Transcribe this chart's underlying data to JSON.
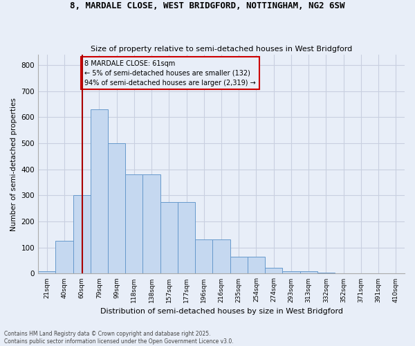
{
  "title1": "8, MARDALE CLOSE, WEST BRIDGFORD, NOTTINGHAM, NG2 6SW",
  "title2": "Size of property relative to semi-detached houses in West Bridgford",
  "xlabel": "Distribution of semi-detached houses by size in West Bridgford",
  "ylabel": "Number of semi-detached properties",
  "categories": [
    "21sqm",
    "40sqm",
    "60sqm",
    "79sqm",
    "99sqm",
    "118sqm",
    "138sqm",
    "157sqm",
    "177sqm",
    "196sqm",
    "216sqm",
    "235sqm",
    "254sqm",
    "274sqm",
    "293sqm",
    "313sqm",
    "332sqm",
    "352sqm",
    "371sqm",
    "391sqm",
    "410sqm"
  ],
  "values": [
    8,
    125,
    300,
    630,
    500,
    380,
    380,
    275,
    275,
    130,
    130,
    65,
    65,
    22,
    10,
    10,
    5,
    2,
    1,
    1,
    1
  ],
  "bar_color": "#c5d8f0",
  "bar_edge_color": "#6699cc",
  "grid_color": "#c8cfe0",
  "bg_color": "#e8eef8",
  "vline_color": "#aa0000",
  "vline_x": 2.05,
  "annotation_text": "8 MARDALE CLOSE: 61sqm\n← 5% of semi-detached houses are smaller (132)\n94% of semi-detached houses are larger (2,319) →",
  "annotation_box_edge": "#cc0000",
  "footer1": "Contains HM Land Registry data © Crown copyright and database right 2025.",
  "footer2": "Contains public sector information licensed under the Open Government Licence v3.0.",
  "ylim": [
    0,
    840
  ],
  "yticks": [
    0,
    100,
    200,
    300,
    400,
    500,
    600,
    700,
    800
  ]
}
